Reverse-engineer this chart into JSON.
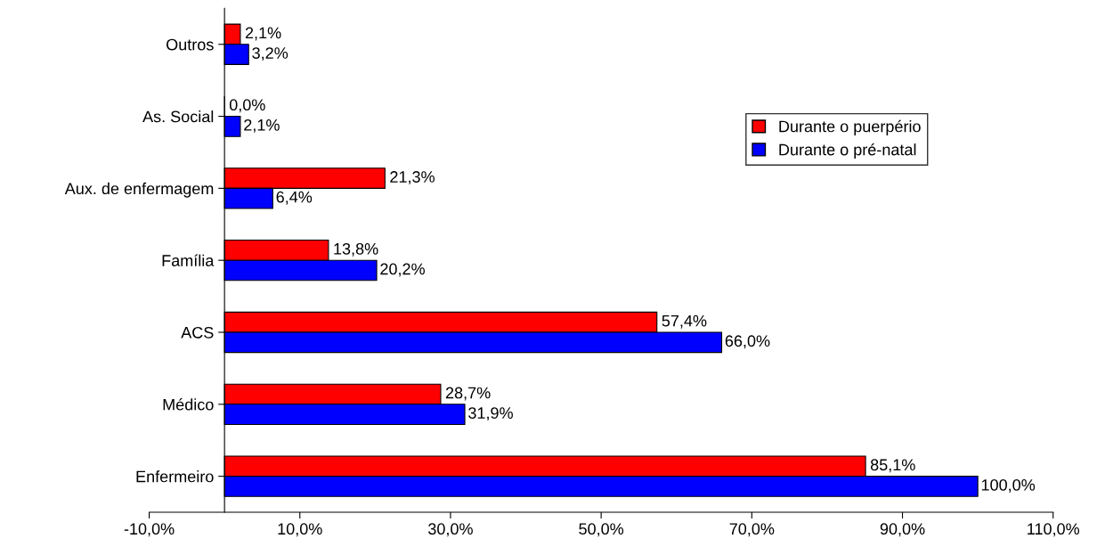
{
  "chart_data": {
    "type": "bar",
    "orientation": "horizontal",
    "categories": [
      "Outros",
      "As. Social",
      "Aux. de enfermagem",
      "Família",
      "ACS",
      "Médico",
      "Enfermeiro"
    ],
    "series": [
      {
        "name": "Durante o puerpério",
        "color": "#ff0000",
        "values": [
          2.1,
          0.0,
          21.3,
          13.8,
          57.4,
          28.7,
          85.1
        ],
        "value_labels": [
          "2,1%",
          "0,0%",
          "21,3%",
          "13,8%",
          "57,4%",
          "28,7%",
          "85,1%"
        ]
      },
      {
        "name": "Durante o pré-natal",
        "color": "#0000ff",
        "values": [
          3.2,
          2.1,
          6.4,
          20.2,
          66.0,
          31.9,
          100.0
        ],
        "value_labels": [
          "3,2%",
          "2,1%",
          "6,4%",
          "20,2%",
          "66,0%",
          "31,9%",
          "100,0%"
        ]
      }
    ],
    "xlim": [
      -10,
      110
    ],
    "xticks": [
      {
        "value": -10,
        "label": "-10,0%"
      },
      {
        "value": 10,
        "label": "10,0%"
      },
      {
        "value": 30,
        "label": "30,0%"
      },
      {
        "value": 50,
        "label": "50,0%"
      },
      {
        "value": 70,
        "label": "70,0%"
      },
      {
        "value": 90,
        "label": "90,0%"
      },
      {
        "value": 110,
        "label": "110,0%"
      }
    ],
    "grid": false,
    "legend": "right"
  }
}
